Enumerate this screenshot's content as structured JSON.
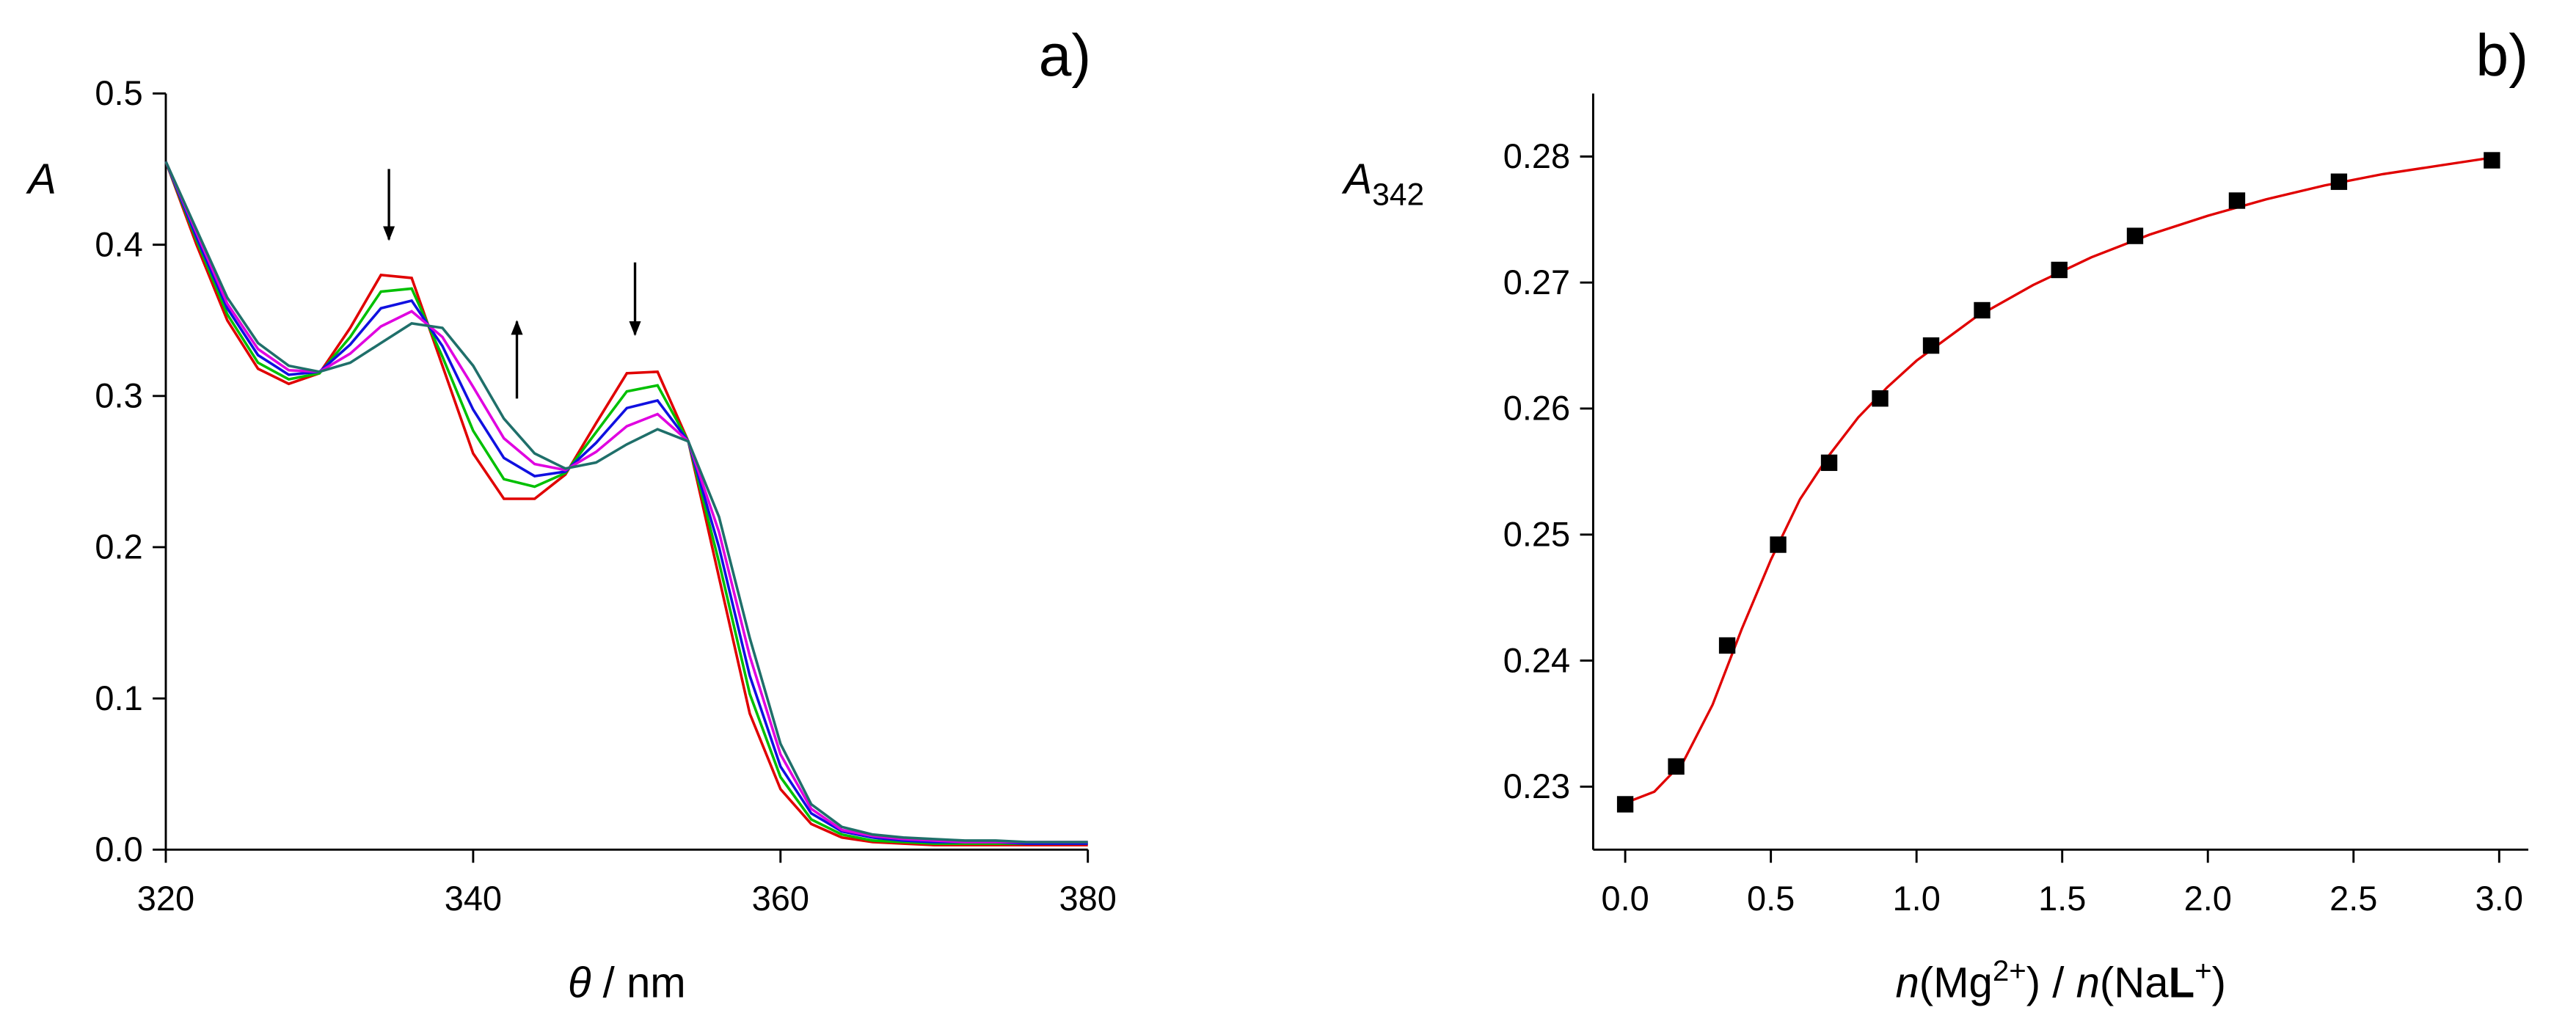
{
  "chart_data": [
    {
      "type": "line",
      "panel_label": "a)",
      "y_label": "A",
      "x_label_parts": [
        "θ",
        " / nm"
      ],
      "x": [
        320,
        322,
        324,
        326,
        328,
        330,
        332,
        334,
        336,
        338,
        340,
        342,
        344,
        346,
        348,
        350,
        352,
        354,
        356,
        358,
        360,
        362,
        364,
        366,
        368,
        370,
        372,
        374,
        376,
        378,
        380
      ],
      "xlim": [
        320,
        380
      ],
      "xticks": [
        320,
        340,
        360,
        380
      ],
      "ylim": [
        0,
        0.5
      ],
      "yticks": [
        {
          "value": 0,
          "label": "0.0"
        },
        0.1,
        0.2,
        0.3,
        0.4,
        0.5
      ],
      "series": [
        {
          "color": "#e00000",
          "values": [
            0.455,
            0.4,
            0.35,
            0.318,
            0.308,
            0.315,
            0.345,
            0.38,
            0.378,
            0.32,
            0.262,
            0.232,
            0.232,
            0.248,
            0.282,
            0.315,
            0.316,
            0.27,
            0.18,
            0.09,
            0.04,
            0.017,
            0.008,
            0.005,
            0.004,
            0.003,
            0.003,
            0.003,
            0.003,
            0.003,
            0.003
          ]
        },
        {
          "color": "#00c000",
          "values": [
            0.455,
            0.403,
            0.354,
            0.322,
            0.311,
            0.315,
            0.339,
            0.369,
            0.371,
            0.326,
            0.277,
            0.245,
            0.24,
            0.249,
            0.276,
            0.303,
            0.307,
            0.27,
            0.19,
            0.103,
            0.048,
            0.02,
            0.01,
            0.006,
            0.005,
            0.004,
            0.004,
            0.004,
            0.004,
            0.004,
            0.004
          ]
        },
        {
          "color": "#1010e0",
          "values": [
            0.455,
            0.405,
            0.358,
            0.327,
            0.314,
            0.316,
            0.334,
            0.358,
            0.363,
            0.333,
            0.291,
            0.259,
            0.247,
            0.25,
            0.269,
            0.292,
            0.297,
            0.27,
            0.2,
            0.115,
            0.055,
            0.024,
            0.012,
            0.008,
            0.006,
            0.005,
            0.005,
            0.005,
            0.004,
            0.004,
            0.004
          ]
        },
        {
          "color": "#e000e0",
          "values": [
            0.455,
            0.408,
            0.361,
            0.331,
            0.317,
            0.316,
            0.328,
            0.346,
            0.356,
            0.339,
            0.306,
            0.272,
            0.255,
            0.251,
            0.263,
            0.28,
            0.288,
            0.27,
            0.21,
            0.128,
            0.063,
            0.027,
            0.013,
            0.009,
            0.007,
            0.006,
            0.005,
            0.005,
            0.005,
            0.005,
            0.005
          ]
        },
        {
          "color": "#1f6f6a",
          "values": [
            0.455,
            0.41,
            0.365,
            0.335,
            0.32,
            0.316,
            0.322,
            0.335,
            0.348,
            0.345,
            0.32,
            0.285,
            0.262,
            0.252,
            0.256,
            0.268,
            0.278,
            0.27,
            0.22,
            0.14,
            0.07,
            0.03,
            0.015,
            0.01,
            0.008,
            0.007,
            0.006,
            0.006,
            0.005,
            0.005,
            0.005
          ]
        }
      ]
    },
    {
      "type": "scatter",
      "panel_label": "b)",
      "y_label": "A",
      "y_label_subscript": "342",
      "x_label_parts": [
        "n",
        "(Mg",
        "2+",
        ") / ",
        "n",
        "(Na",
        "L",
        "+",
        ")"
      ],
      "xlim": [
        -0.11,
        3.1
      ],
      "xticks": [
        {
          "value": 0,
          "label": "0.0"
        },
        0.5,
        {
          "value": 1,
          "label": "1.0"
        },
        1.5,
        {
          "value": 2,
          "label": "2.0"
        },
        2.5,
        {
          "value": 3,
          "label": "3.0"
        }
      ],
      "ylim": [
        0.225,
        0.285
      ],
      "yticks": [
        0.23,
        0.24,
        0.25,
        0.26,
        0.27,
        0.28
      ],
      "series": [
        {
          "mode": "markers",
          "color": "#000000",
          "x": [
            0,
            0.175,
            0.35,
            0.525,
            0.7,
            0.875,
            1.05,
            1.225,
            1.49,
            1.75,
            2.1,
            2.45,
            2.975
          ],
          "values": [
            0.2286,
            0.2316,
            0.2412,
            0.2492,
            0.2557,
            0.2608,
            0.265,
            0.2678,
            0.271,
            0.2737,
            0.2765,
            0.278,
            0.2797
          ]
        },
        {
          "mode": "line",
          "color": "#e00000",
          "x": [
            0,
            0.1,
            0.2,
            0.3,
            0.4,
            0.5,
            0.6,
            0.7,
            0.8,
            0.9,
            1.0,
            1.2,
            1.4,
            1.6,
            1.8,
            2.0,
            2.2,
            2.4,
            2.6,
            2.8,
            3.0
          ],
          "values": [
            0.2287,
            0.2296,
            0.232,
            0.2365,
            0.2425,
            0.248,
            0.2528,
            0.2563,
            0.2593,
            0.2617,
            0.2638,
            0.2672,
            0.2698,
            0.272,
            0.2738,
            0.2753,
            0.2766,
            0.2777,
            0.2786,
            0.2793,
            0.28
          ]
        }
      ]
    }
  ]
}
